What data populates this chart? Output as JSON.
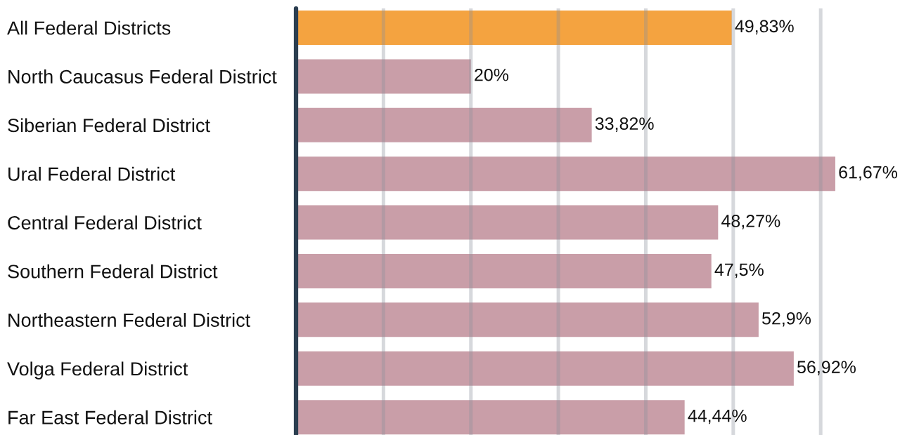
{
  "chart_data": {
    "type": "bar",
    "orientation": "horizontal",
    "categories": [
      "All Federal Districts",
      "North Caucasus Federal District",
      "Siberian Federal District",
      "Ural Federal District",
      "Central Federal District",
      "Southern Federal District",
      "Northeastern Federal District",
      "Volga Federal District",
      "Far East Federal District"
    ],
    "values": [
      49.83,
      20,
      33.82,
      61.67,
      48.27,
      47.5,
      52.9,
      56.92,
      44.44
    ],
    "colors": [
      "#f4a340",
      "#c99ea8",
      "#c99ea8",
      "#c99ea8",
      "#c99ea8",
      "#c99ea8",
      "#c99ea8",
      "#c99ea8",
      "#c99ea8"
    ],
    "value_labels": [
      "49,83%",
      "20%",
      "33,82%",
      "61,67%",
      "48,27%",
      "47,5%",
      "52,9%",
      "56,92%",
      "44,44%"
    ],
    "xticks": [
      {
        "value": 10,
        "label": null
      },
      {
        "value": 20,
        "label": null
      },
      {
        "value": 30,
        "label": null
      },
      {
        "value": 40,
        "label": null
      },
      {
        "value": 50,
        "label": null
      },
      {
        "value": 60,
        "label": null
      }
    ],
    "grid": "x",
    "tick_labels": "y"
  }
}
